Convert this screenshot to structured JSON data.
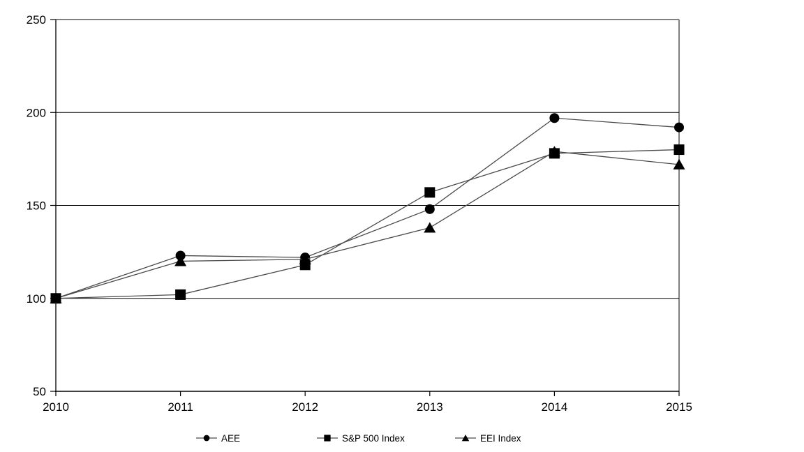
{
  "chart_data": {
    "type": "line",
    "title": "",
    "xlabel": "",
    "ylabel": "",
    "x": [
      "2010",
      "2011",
      "2012",
      "2013",
      "2014",
      "2015"
    ],
    "ylim": [
      50,
      250
    ],
    "yticks": [
      50,
      100,
      150,
      200,
      250
    ],
    "grid": true,
    "legend_position": "bottom",
    "series": [
      {
        "name": "AEE",
        "marker": "circle",
        "values": [
          100,
          123,
          122,
          148,
          197,
          192
        ]
      },
      {
        "name": "S&P 500 Index",
        "marker": "square",
        "values": [
          100,
          102,
          118,
          157,
          178,
          180
        ]
      },
      {
        "name": "EEI Index",
        "marker": "triangle",
        "values": [
          100,
          120,
          121,
          138,
          179,
          172
        ]
      }
    ],
    "colors": {
      "line": "#4a4a4a",
      "marker": "#000000",
      "grid": "#000000",
      "axis": "#000000",
      "frame": "#808080",
      "text": "#000000",
      "background": "#ffffff"
    }
  }
}
